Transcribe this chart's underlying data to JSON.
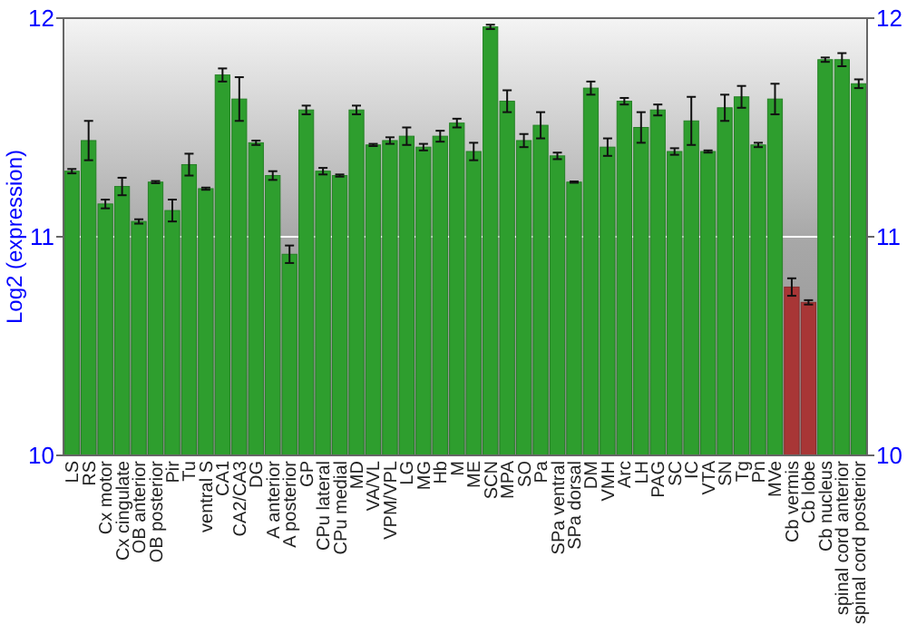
{
  "chart_data": {
    "type": "bar",
    "ylabel": "Log2 (expression)",
    "categories": [
      "LS",
      "RS",
      "Cx motor",
      "Cx cingulate",
      "OB anterior",
      "OB posterior",
      "Pir",
      "Tu",
      "ventral S",
      "CA1",
      "CA2/CA3",
      "DG",
      "A anterior",
      "A posterior",
      "GP",
      "CPu lateral",
      "CPu medial",
      "MD",
      "VA/VL",
      "VPM/VPL",
      "LG",
      "MG",
      "Hb",
      "M",
      "ME",
      "SCN",
      "MPA",
      "SO",
      "Pa",
      "SPa ventral",
      "SPa dorsal",
      "DM",
      "VMH",
      "Arc",
      "LH",
      "PAG",
      "SC",
      "IC",
      "VTA",
      "SN",
      "Tg",
      "Pn",
      "MVe",
      "Cb vermis",
      "Cb lobe",
      "Cb nucleus",
      "spinal cord anterior",
      "spinal cord posterior"
    ],
    "values": [
      11.3,
      11.44,
      11.15,
      11.23,
      11.07,
      11.25,
      11.12,
      11.33,
      11.22,
      11.74,
      11.63,
      11.43,
      11.28,
      10.92,
      11.58,
      11.3,
      11.28,
      11.58,
      11.42,
      11.44,
      11.46,
      11.41,
      11.46,
      11.52,
      11.39,
      11.96,
      11.62,
      11.44,
      11.51,
      11.37,
      11.25,
      11.68,
      11.41,
      11.62,
      11.5,
      11.58,
      11.39,
      11.53,
      11.39,
      11.59,
      11.64,
      11.42,
      11.63,
      10.77,
      10.7,
      11.81,
      11.81,
      11.7
    ],
    "errors": [
      0.01,
      0.09,
      0.02,
      0.04,
      0.01,
      0.005,
      0.05,
      0.05,
      0.005,
      0.03,
      0.1,
      0.01,
      0.02,
      0.04,
      0.02,
      0.015,
      0.005,
      0.02,
      0.005,
      0.015,
      0.04,
      0.015,
      0.025,
      0.02,
      0.04,
      0.01,
      0.05,
      0.03,
      0.06,
      0.015,
      0.003,
      0.03,
      0.04,
      0.015,
      0.07,
      0.025,
      0.015,
      0.11,
      0.005,
      0.06,
      0.05,
      0.01,
      0.07,
      0.04,
      0.01,
      0.01,
      0.03,
      0.02
    ],
    "colors": [
      "#2e9e2e",
      "#2e9e2e",
      "#2e9e2e",
      "#2e9e2e",
      "#2e9e2e",
      "#2e9e2e",
      "#2e9e2e",
      "#2e9e2e",
      "#2e9e2e",
      "#2e9e2e",
      "#2e9e2e",
      "#2e9e2e",
      "#2e9e2e",
      "#2e9e2e",
      "#2e9e2e",
      "#2e9e2e",
      "#2e9e2e",
      "#2e9e2e",
      "#2e9e2e",
      "#2e9e2e",
      "#2e9e2e",
      "#2e9e2e",
      "#2e9e2e",
      "#2e9e2e",
      "#2e9e2e",
      "#2e9e2e",
      "#2e9e2e",
      "#2e9e2e",
      "#2e9e2e",
      "#2e9e2e",
      "#2e9e2e",
      "#2e9e2e",
      "#2e9e2e",
      "#2e9e2e",
      "#2e9e2e",
      "#2e9e2e",
      "#2e9e2e",
      "#2e9e2e",
      "#2e9e2e",
      "#2e9e2e",
      "#2e9e2e",
      "#2e9e2e",
      "#2e9e2e",
      "#a83636",
      "#a83636",
      "#2e9e2e",
      "#2e9e2e",
      "#2e9e2e"
    ],
    "ylim": [
      10,
      12
    ],
    "yticks": [
      10,
      11,
      12
    ],
    "y2lim": [
      10,
      12
    ],
    "y2ticks": [
      10,
      11,
      12
    ],
    "grid": "y"
  }
}
